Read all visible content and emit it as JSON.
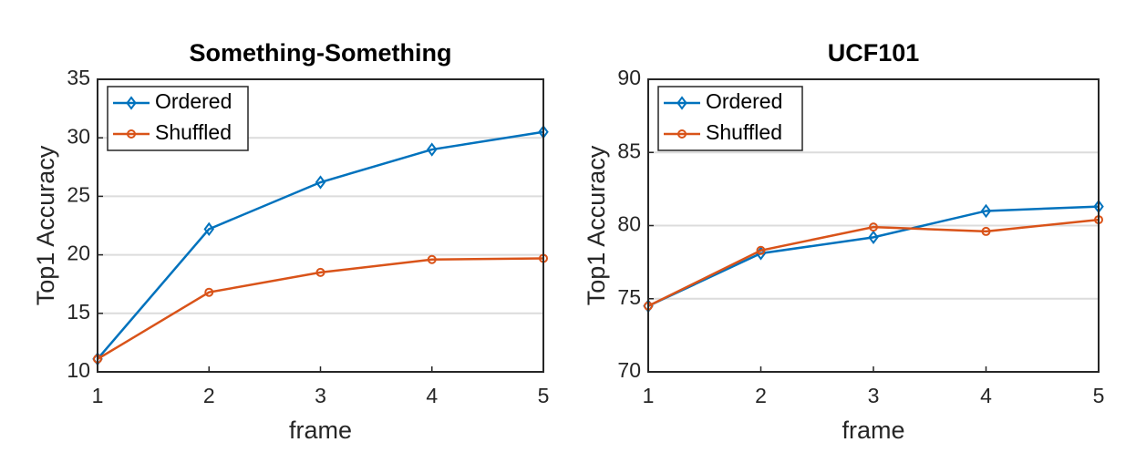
{
  "chart_data": [
    {
      "type": "line",
      "title": "Something-Something",
      "x_label": "frame",
      "y_label": "Top1 Accuracy",
      "x": [
        1,
        2,
        3,
        4,
        5
      ],
      "xlim": [
        1,
        5
      ],
      "xticks": [
        1,
        2,
        3,
        4,
        5
      ],
      "ylim": [
        10,
        35
      ],
      "yticks": [
        10,
        15,
        20,
        25,
        30,
        35
      ],
      "grid": true,
      "legend": "upper left",
      "series": [
        {
          "name": "Ordered",
          "color": "#0072bd",
          "marker": "diamond",
          "values": [
            11.1,
            22.2,
            26.2,
            29.0,
            30.5
          ]
        },
        {
          "name": "Shuffled",
          "color": "#d95319",
          "marker": "circle",
          "values": [
            11.1,
            16.8,
            18.5,
            19.6,
            19.7
          ]
        }
      ]
    },
    {
      "type": "line",
      "title": "UCF101",
      "x_label": "frame",
      "y_label": "Top1 Accuracy",
      "x": [
        1,
        2,
        3,
        4,
        5
      ],
      "xlim": [
        1,
        5
      ],
      "xticks": [
        1,
        2,
        3,
        4,
        5
      ],
      "ylim": [
        70,
        90
      ],
      "yticks": [
        70,
        75,
        80,
        85,
        90
      ],
      "grid": true,
      "legend": "upper left",
      "series": [
        {
          "name": "Ordered",
          "color": "#0072bd",
          "marker": "diamond",
          "values": [
            74.5,
            78.1,
            79.2,
            81.0,
            81.3
          ]
        },
        {
          "name": "Shuffled",
          "color": "#d95319",
          "marker": "circle",
          "values": [
            74.5,
            78.3,
            79.9,
            79.6,
            80.4
          ]
        }
      ]
    }
  ]
}
